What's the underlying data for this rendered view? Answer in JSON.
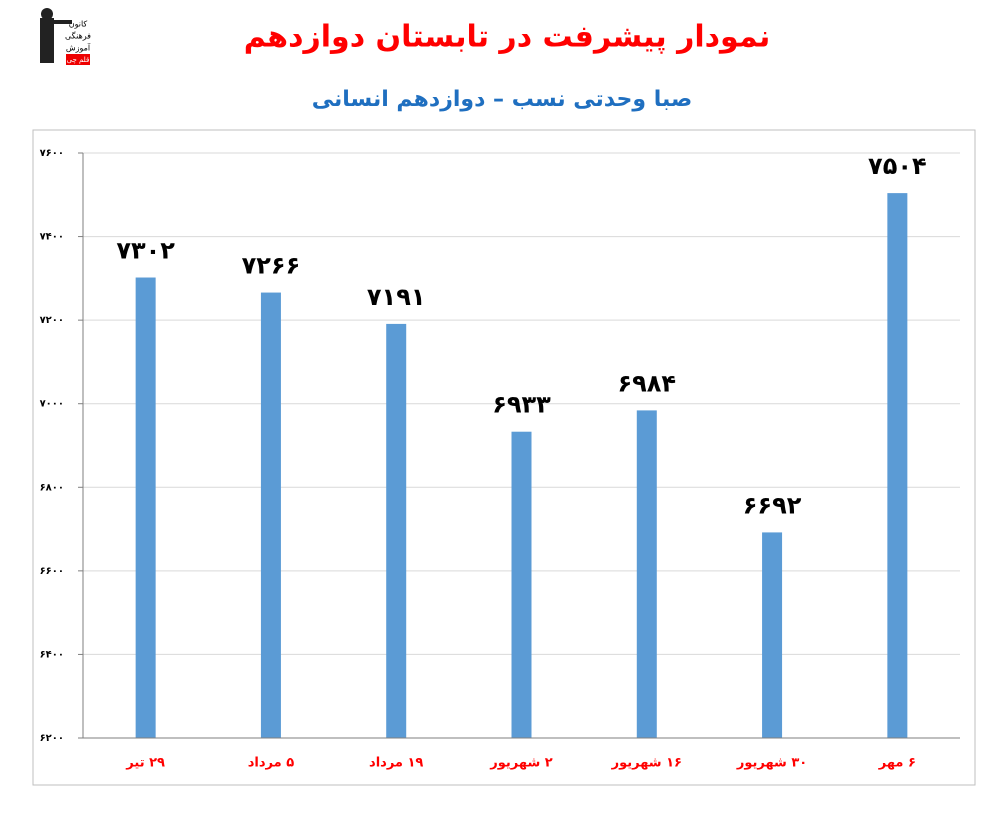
{
  "chart_data": {
    "type": "bar",
    "title": "نمودار پیشرفت در تابستان دوازدهم",
    "subtitle": "صبا وحدتی نسب – دوازدهم انسانی",
    "logo_text": [
      "کانون",
      "فرهنگی",
      "آموزش",
      "قلم چی"
    ],
    "categories": [
      "۲۹ تیر",
      "۵ مرداد",
      "۱۹ مرداد",
      "۲ شهریور",
      "۱۶ شهریور",
      "۳۰ شهریور",
      "۶ مهر"
    ],
    "values": [
      7302,
      7266,
      7191,
      6933,
      6984,
      6692,
      7504
    ],
    "value_labels": [
      "۷۳۰۲",
      "۷۲۶۶",
      "۷۱۹۱",
      "۶۹۳۳",
      "۶۹۸۴",
      "۶۶۹۲",
      "۷۵۰۴"
    ],
    "color": "#5b9bd5",
    "ylim": [
      6200,
      7600
    ],
    "yticks": [
      {
        "value": 6200,
        "label": "۶۲۰۰"
      },
      {
        "value": 6400,
        "label": "۶۴۰۰"
      },
      {
        "value": 6600,
        "label": "۶۶۰۰"
      },
      {
        "value": 6800,
        "label": "۶۸۰۰"
      },
      {
        "value": 7000,
        "label": "۷۰۰۰"
      },
      {
        "value": 7200,
        "label": "۷۲۰۰"
      },
      {
        "value": 7400,
        "label": "۷۴۰۰"
      },
      {
        "value": 7600,
        "label": "۷۶۰۰"
      }
    ],
    "grid": true
  }
}
